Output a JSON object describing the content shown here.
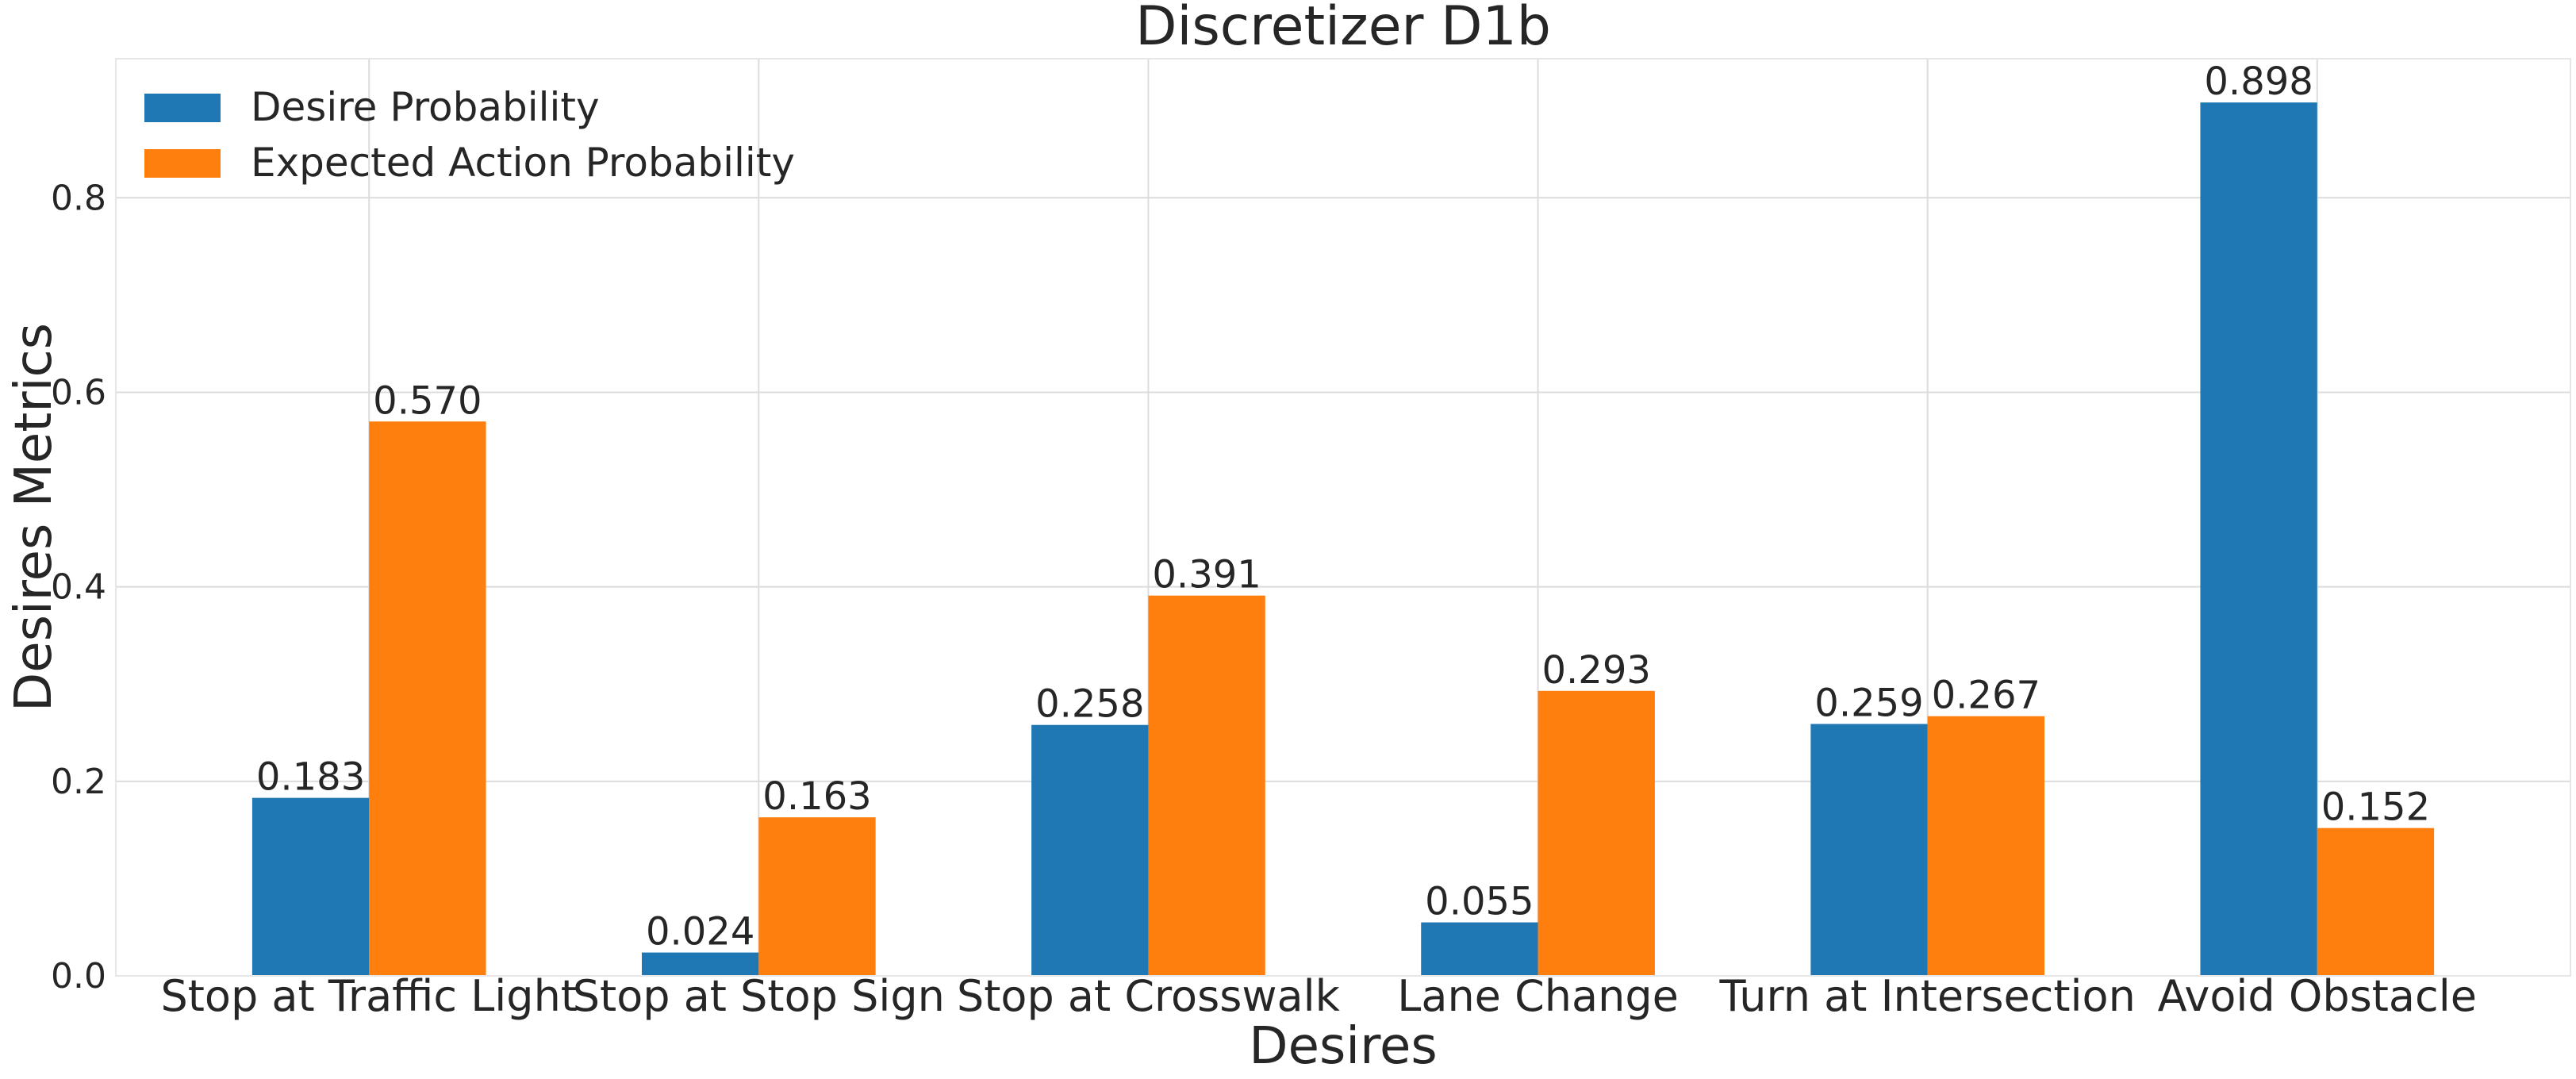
{
  "chart_data": {
    "type": "bar",
    "title": "Discretizer D1b",
    "xlabel": "Desires",
    "ylabel": "Desires Metrics",
    "categories": [
      "Stop at Traffic Light",
      "Stop at Stop Sign",
      "Stop at Crosswalk",
      "Lane Change",
      "Turn at Intersection",
      "Avoid Obstacle"
    ],
    "series": [
      {
        "name": "Desire Probability",
        "color": "#1f77b4",
        "values": [
          0.183,
          0.024,
          0.258,
          0.055,
          0.259,
          0.898
        ]
      },
      {
        "name": "Expected Action Probability",
        "color": "#ff7f0e",
        "values": [
          0.57,
          0.163,
          0.391,
          0.293,
          0.267,
          0.152
        ]
      }
    ],
    "data_labels": [
      [
        "0.183",
        "0.024",
        "0.258",
        "0.055",
        "0.259",
        "0.898"
      ],
      [
        "0.570",
        "0.163",
        "0.391",
        "0.293",
        "0.267",
        "0.152"
      ]
    ],
    "yticks": [
      "0.0",
      "0.2",
      "0.4",
      "0.6",
      "0.8"
    ],
    "ylim": [
      0,
      0.943
    ],
    "grid": true,
    "legend_position": "top-left"
  }
}
